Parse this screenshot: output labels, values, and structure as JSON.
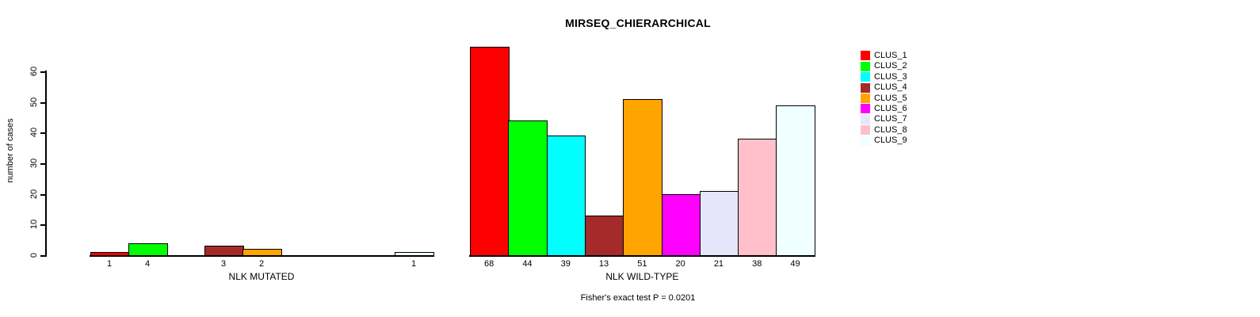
{
  "chart_data": {
    "type": "bar",
    "title": "MIRSEQ_CHIERARCHICAL",
    "ylabel": "number of cases",
    "yticks": [
      0,
      10,
      20,
      30,
      40,
      50,
      60
    ],
    "ylim": [
      0,
      68
    ],
    "grid": false,
    "legend_position": "right",
    "clusters": [
      {
        "name": "CLUS_1",
        "color": "#FF0000"
      },
      {
        "name": "CLUS_2",
        "color": "#00FF00"
      },
      {
        "name": "CLUS_3",
        "color": "#00FFFF"
      },
      {
        "name": "CLUS_4",
        "color": "#A52A2A"
      },
      {
        "name": "CLUS_5",
        "color": "#FFA500"
      },
      {
        "name": "CLUS_6",
        "color": "#FF00FF"
      },
      {
        "name": "CLUS_7",
        "color": "#E6E6FA"
      },
      {
        "name": "CLUS_8",
        "color": "#FFC0CB"
      },
      {
        "name": "CLUS_9",
        "color": "#F0FFFF"
      }
    ],
    "groups": [
      {
        "label": "NLK MUTATED",
        "values": [
          1,
          4,
          0,
          3,
          2,
          0,
          0,
          0,
          1
        ]
      },
      {
        "label": "NLK WILD-TYPE",
        "values": [
          68,
          44,
          39,
          13,
          51,
          20,
          21,
          38,
          49
        ]
      }
    ],
    "footnote": "Fisher's exact test P = 0.0201"
  }
}
